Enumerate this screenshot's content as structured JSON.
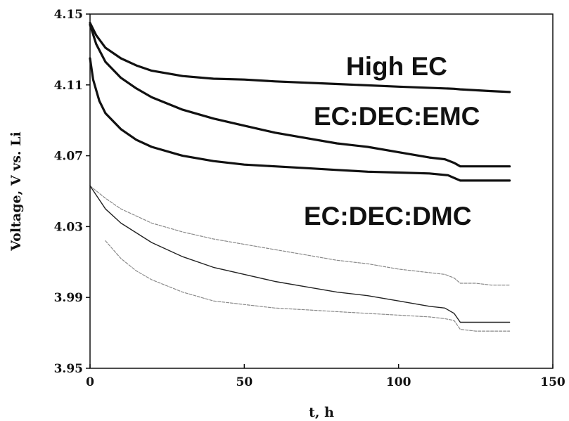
{
  "chart_data": {
    "type": "line",
    "title": "",
    "xlabel": "t, h",
    "ylabel": "Voltage, V vs. Li",
    "xlim": [
      0,
      150
    ],
    "ylim": [
      3.95,
      4.15
    ],
    "xticks": [
      "0",
      "50",
      "100",
      "150"
    ],
    "yticks": [
      "3.95",
      "3.99",
      "4.03",
      "4.07",
      "4.11",
      "4.15"
    ],
    "grid": false,
    "legend": "none",
    "annotations": [
      "High EC",
      "EC:DEC:EMC",
      "EC:DEC:DMC"
    ],
    "series": [
      {
        "style": "thick-dark",
        "x": [
          0,
          2,
          5,
          10,
          15,
          20,
          30,
          40,
          50,
          60,
          80,
          100,
          115,
          118,
          120,
          125,
          130,
          136
        ],
        "values": [
          4.145,
          4.138,
          4.131,
          4.125,
          4.121,
          4.118,
          4.115,
          4.1135,
          4.113,
          4.112,
          4.1105,
          4.109,
          4.108,
          4.1078,
          4.1075,
          4.107,
          4.1065,
          4.106
        ]
      },
      {
        "style": "thick-dark",
        "x": [
          0,
          2,
          5,
          10,
          15,
          20,
          30,
          40,
          50,
          60,
          70,
          80,
          90,
          100,
          110,
          115,
          118,
          120,
          125,
          130,
          136
        ],
        "values": [
          4.144,
          4.133,
          4.123,
          4.114,
          4.108,
          4.103,
          4.096,
          4.091,
          4.087,
          4.083,
          4.08,
          4.077,
          4.075,
          4.072,
          4.069,
          4.068,
          4.066,
          4.064,
          4.064,
          4.064,
          4.064
        ]
      },
      {
        "style": "thick-dark",
        "x": [
          0,
          1,
          3,
          5,
          10,
          15,
          20,
          30,
          40,
          50,
          60,
          70,
          80,
          90,
          100,
          110,
          116,
          118,
          120,
          125,
          130,
          136
        ],
        "values": [
          4.125,
          4.113,
          4.101,
          4.094,
          4.085,
          4.079,
          4.075,
          4.07,
          4.067,
          4.065,
          4.064,
          4.063,
          4.062,
          4.061,
          4.0605,
          4.06,
          4.059,
          4.0575,
          4.056,
          4.056,
          4.056,
          4.056
        ]
      },
      {
        "style": "thin-gray",
        "x": [
          0,
          5,
          10,
          20,
          30,
          40,
          50,
          60,
          70,
          80,
          90,
          100,
          110,
          115,
          118,
          120,
          125,
          130,
          136
        ],
        "values": [
          4.053,
          4.046,
          4.04,
          4.032,
          4.027,
          4.023,
          4.02,
          4.017,
          4.014,
          4.011,
          4.009,
          4.006,
          4.004,
          4.003,
          4.001,
          3.998,
          3.998,
          3.997,
          3.997
        ]
      },
      {
        "style": "thin-dark",
        "x": [
          0,
          5,
          10,
          20,
          30,
          40,
          50,
          60,
          70,
          80,
          90,
          100,
          110,
          115,
          118,
          120,
          125,
          130,
          136
        ],
        "values": [
          4.053,
          4.04,
          4.032,
          4.021,
          4.013,
          4.007,
          4.003,
          3.999,
          3.996,
          3.993,
          3.991,
          3.988,
          3.985,
          3.984,
          3.981,
          3.976,
          3.976,
          3.976,
          3.976
        ]
      },
      {
        "style": "thin-gray",
        "x": [
          5,
          10,
          15,
          20,
          30,
          40,
          50,
          60,
          70,
          80,
          90,
          100,
          110,
          115,
          118,
          120,
          125,
          130,
          136
        ],
        "values": [
          4.022,
          4.012,
          4.005,
          4.0,
          3.993,
          3.988,
          3.986,
          3.984,
          3.983,
          3.982,
          3.981,
          3.98,
          3.979,
          3.978,
          3.977,
          3.972,
          3.971,
          3.971,
          3.971
        ]
      }
    ]
  }
}
